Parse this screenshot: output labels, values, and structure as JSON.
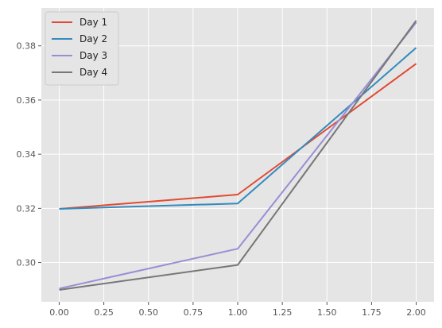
{
  "chart_data": {
    "type": "line",
    "x": [
      0,
      1,
      2
    ],
    "series": [
      {
        "name": "Day 1",
        "values": [
          0.3198,
          0.3251,
          0.3734
        ],
        "color": "#E24A33"
      },
      {
        "name": "Day 2",
        "values": [
          0.3198,
          0.3218,
          0.3793
        ],
        "color": "#348ABD"
      },
      {
        "name": "Day 3",
        "values": [
          0.2904,
          0.3051,
          0.3886
        ],
        "color": "#988ED5"
      },
      {
        "name": "Day 4",
        "values": [
          0.2899,
          0.2991,
          0.3893
        ],
        "color": "#777777"
      }
    ],
    "xlim": [
      -0.1,
      2.1
    ],
    "ylim": [
      0.2855,
      0.394
    ],
    "x_ticks": [
      0.0,
      0.25,
      0.5,
      0.75,
      1.0,
      1.25,
      1.5,
      1.75,
      2.0
    ],
    "x_tick_labels": [
      "0.00",
      "0.25",
      "0.50",
      "0.75",
      "1.00",
      "1.25",
      "1.50",
      "1.75",
      "2.00"
    ],
    "y_ticks": [
      0.3,
      0.32,
      0.34,
      0.36,
      0.38
    ],
    "y_tick_labels": [
      "0.30",
      "0.32",
      "0.34",
      "0.36",
      "0.38"
    ],
    "grid": true,
    "legend_position": "top-left",
    "background": "#E5E5E5",
    "grid_color": "#FFFFFF"
  }
}
